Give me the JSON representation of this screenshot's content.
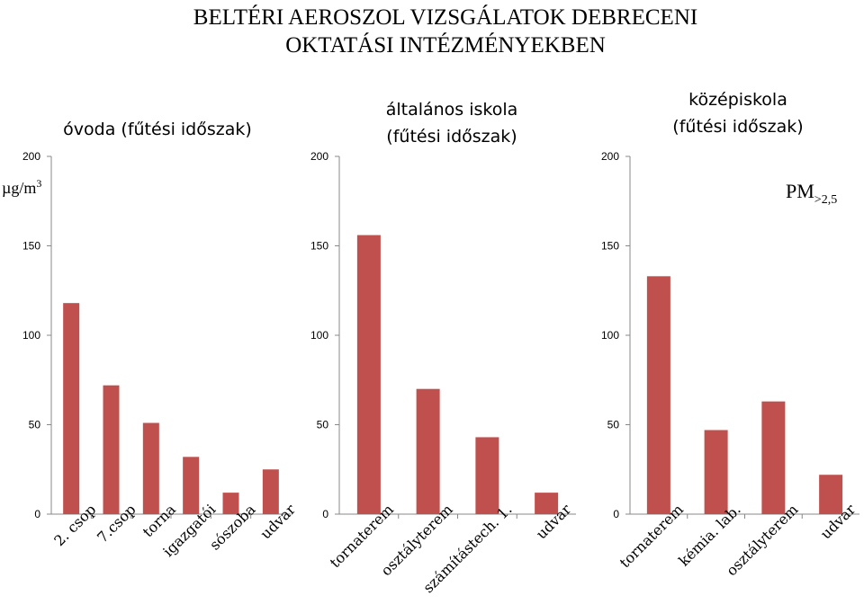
{
  "title": {
    "line1": "BELTÉRI AEROSZOL VIZSGÁLATOK DEBRECENI",
    "line2": "OKTATÁSI INTÉZMÉNYEKBEN"
  },
  "unit_label": {
    "base": "µg/m",
    "superscript": "3"
  },
  "legend_label": {
    "main": "PM",
    "subscript": ">2,5"
  },
  "colors": {
    "bar": "#C0504D",
    "axis": "#888888"
  },
  "chart_data": [
    {
      "type": "bar",
      "title_lines": [
        "óvoda (fűtési időszak)"
      ],
      "categories": [
        "2. csop",
        "7.csop",
        "torna",
        "igazgatói",
        "sószoba",
        "udvar"
      ],
      "values": [
        118,
        72,
        51,
        32,
        12,
        25
      ],
      "ylim": [
        0,
        200
      ],
      "yticks": [
        "0",
        "50",
        "100",
        "150",
        "200"
      ]
    },
    {
      "type": "bar",
      "title_lines": [
        "általános iskola",
        "(fűtési időszak)"
      ],
      "categories": [
        "tornaterem",
        "osztályterem",
        "számítástech. 1.",
        "udvar"
      ],
      "values": [
        156,
        70,
        43,
        12
      ],
      "ylim": [
        0,
        200
      ],
      "yticks": [
        "0",
        "50",
        "100",
        "150",
        "200"
      ]
    },
    {
      "type": "bar",
      "title_lines": [
        "középiskola",
        "(fűtési időszak)"
      ],
      "categories": [
        "tornaterem",
        "kémia. lab.",
        "osztályterem",
        "udvar"
      ],
      "values": [
        133,
        47,
        63,
        22
      ],
      "ylim": [
        0,
        200
      ],
      "yticks": [
        "0",
        "50",
        "100",
        "150",
        "200"
      ]
    }
  ]
}
